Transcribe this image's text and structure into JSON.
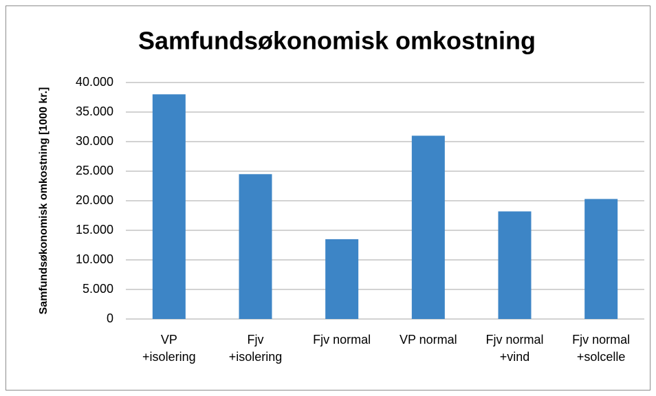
{
  "chart_data": {
    "type": "bar",
    "title": "Samfundsøkonomisk omkostning",
    "y_label": "Samfundsøkonomisk omkostning [1000 kr.]",
    "categories": [
      "VP +isolering",
      "Fjv +isolering",
      "Fjv normal",
      "VP normal",
      "Fjv normal +vind",
      "Fjv normal +solcelle"
    ],
    "values": [
      38000,
      24500,
      13500,
      31000,
      18200,
      20300
    ],
    "color": "#3d85c6",
    "ylim": [
      0,
      40000
    ],
    "yticks": [
      0,
      {
        "value": 5000,
        "label": "5.000"
      },
      {
        "value": 10000,
        "label": "10.000"
      },
      {
        "value": 15000,
        "label": "15.000"
      },
      {
        "value": 20000,
        "label": "20.000"
      },
      {
        "value": 25000,
        "label": "25.000"
      },
      {
        "value": 30000,
        "label": "30.000"
      },
      {
        "value": 35000,
        "label": "35.000"
      },
      {
        "value": 40000,
        "label": "40.000"
      }
    ],
    "grid": true
  }
}
